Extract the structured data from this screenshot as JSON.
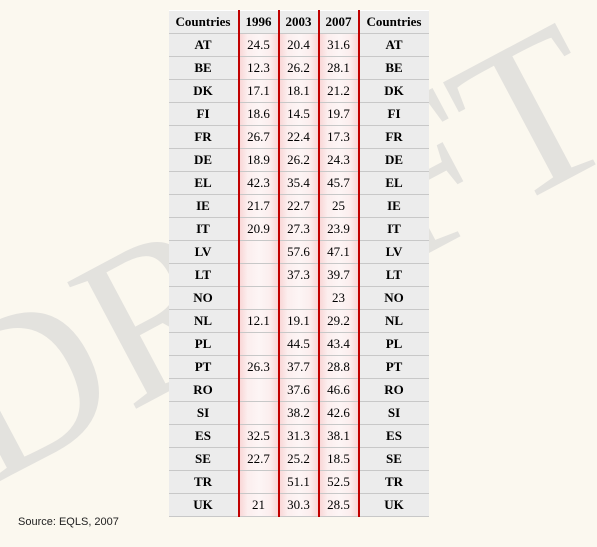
{
  "watermark_text": "DRAFT",
  "watermark_color": "#cfcfcf",
  "watermark_opacity": 0.55,
  "source_label": "Source: EQLS, 2007",
  "table": {
    "columns": [
      "Countries",
      "1996",
      "2003",
      "2007",
      "Countries"
    ],
    "column_types": [
      "country",
      "year",
      "year",
      "year",
      "country"
    ],
    "rows": [
      [
        "AT",
        "24.5",
        "20.4",
        "31.6",
        "AT"
      ],
      [
        "BE",
        "12.3",
        "26.2",
        "28.1",
        "BE"
      ],
      [
        "DK",
        "17.1",
        "18.1",
        "21.2",
        "DK"
      ],
      [
        "FI",
        "18.6",
        "14.5",
        "19.7",
        "FI"
      ],
      [
        "FR",
        "26.7",
        "22.4",
        "17.3",
        "FR"
      ],
      [
        "DE",
        "18.9",
        "26.2",
        "24.3",
        "DE"
      ],
      [
        "EL",
        "42.3",
        "35.4",
        "45.7",
        "EL"
      ],
      [
        "IE",
        "21.7",
        "22.7",
        "25",
        "IE"
      ],
      [
        "IT",
        "20.9",
        "27.3",
        "23.9",
        "IT"
      ],
      [
        "LV",
        "",
        "57.6",
        "47.1",
        "LV"
      ],
      [
        "LT",
        "",
        "37.3",
        "39.7",
        "LT"
      ],
      [
        "NO",
        "",
        "",
        "23",
        "NO"
      ],
      [
        "NL",
        "12.1",
        "19.1",
        "29.2",
        "NL"
      ],
      [
        "PL",
        "",
        "44.5",
        "43.4",
        "PL"
      ],
      [
        "PT",
        "26.3",
        "37.7",
        "28.8",
        "PT"
      ],
      [
        "RO",
        "",
        "37.6",
        "46.6",
        "RO"
      ],
      [
        "SI",
        "",
        "38.2",
        "42.6",
        "SI"
      ],
      [
        "ES",
        "32.5",
        "31.3",
        "38.1",
        "ES"
      ],
      [
        "SE",
        "22.7",
        "25.2",
        "18.5",
        "SE"
      ],
      [
        "TR",
        "",
        "51.1",
        "52.5",
        "TR"
      ],
      [
        "UK",
        "21",
        "30.3",
        "28.5",
        "UK"
      ]
    ]
  }
}
